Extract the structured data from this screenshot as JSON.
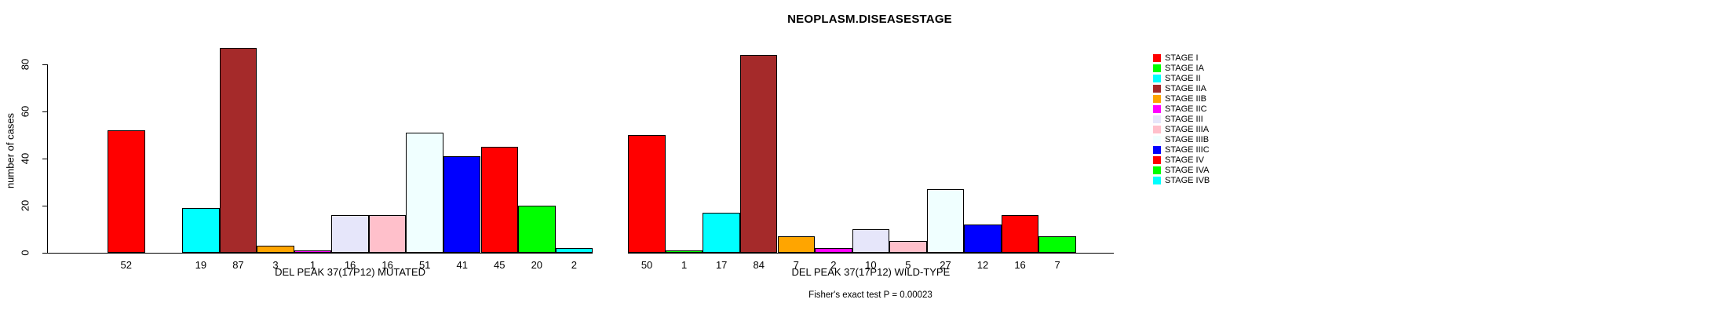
{
  "title": "NEOPLASM.DISEASESTAGE",
  "y_axis": {
    "label": "number of cases",
    "ticks": [
      0,
      20,
      40,
      60,
      80
    ]
  },
  "footer": "Fisher's exact test P = 0.00023",
  "legend": {
    "entries": [
      {
        "label": "STAGE I",
        "color": "#FF0000"
      },
      {
        "label": "STAGE IA",
        "color": "#00FF00"
      },
      {
        "label": "STAGE II",
        "color": "#00FFFF"
      },
      {
        "label": "STAGE IIA",
        "color": "#A52A2A"
      },
      {
        "label": "STAGE IIB",
        "color": "#FFA500"
      },
      {
        "label": "STAGE IIC",
        "color": "#FF00FF"
      },
      {
        "label": "STAGE III",
        "color": "#E6E6FA"
      },
      {
        "label": "STAGE IIIA",
        "color": "#FFC0CB"
      },
      {
        "label": "STAGE IIIB",
        "color": "#F0FFFF"
      },
      {
        "label": "STAGE IIIC",
        "color": "#0000FF"
      },
      {
        "label": "STAGE IV",
        "color": "#FF0000"
      },
      {
        "label": "STAGE IVA",
        "color": "#00FF00"
      },
      {
        "label": "STAGE IVB",
        "color": "#00FFFF"
      }
    ]
  },
  "chart_data": {
    "type": "bar",
    "title": "NEOPLASM.DISEASESTAGE",
    "ylabel": "number of cases",
    "yticks": [
      0,
      20,
      40,
      60,
      80
    ],
    "ylim": [
      0,
      88
    ],
    "grid": false,
    "legend_position": "right",
    "categories": [
      "STAGE I",
      "STAGE IA",
      "STAGE II",
      "STAGE IIA",
      "STAGE IIB",
      "STAGE IIC",
      "STAGE III",
      "STAGE IIIA",
      "STAGE IIIB",
      "STAGE IIIC",
      "STAGE IV",
      "STAGE IVA",
      "STAGE IVB"
    ],
    "colors": [
      "#FF0000",
      "#00FF00",
      "#00FFFF",
      "#A52A2A",
      "#FFA500",
      "#FF00FF",
      "#E6E6FA",
      "#FFC0CB",
      "#F0FFFF",
      "#0000FF",
      "#FF0000",
      "#00FF00",
      "#00FFFF"
    ],
    "series": [
      {
        "name": "DEL PEAK 37(17P12) MUTATED",
        "values": [
          52,
          0,
          19,
          87,
          3,
          1,
          16,
          16,
          51,
          41,
          45,
          20,
          2
        ]
      },
      {
        "name": "DEL PEAK 37(17P12) WILD-TYPE",
        "values": [
          50,
          1,
          17,
          84,
          7,
          2,
          10,
          5,
          27,
          12,
          16,
          7,
          0
        ]
      }
    ],
    "bar_value_labels": "shown under each non-zero bar",
    "annotations": [
      "Fisher's exact test P = 0.00023"
    ]
  }
}
